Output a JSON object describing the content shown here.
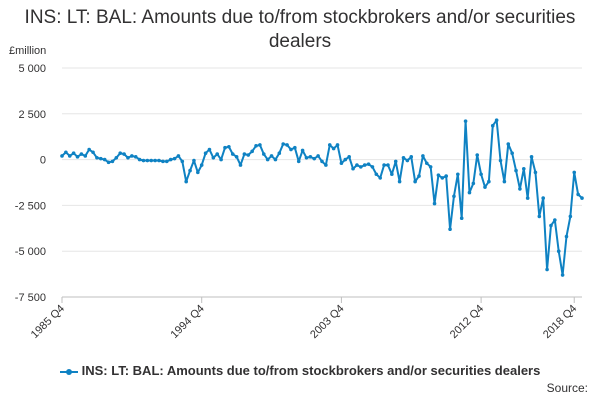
{
  "title": "INS: LT: BAL: Amounts due to/from stockbrokers and/or securities dealers",
  "unit_label": "£million",
  "source_label": "Source:",
  "colors": {
    "series": "#0f82c3",
    "grid": "#e6e6e6",
    "axis": "#bfbfbf",
    "text": "#323132"
  },
  "chart_data": {
    "type": "line",
    "title": "INS: LT: BAL: Amounts due to/from stockbrokers and/or securities dealers",
    "ylabel": "£million",
    "xlabel": "",
    "ylim": [
      -7500,
      5000
    ],
    "yticks": [
      {
        "value": 5000,
        "label": "5 000"
      },
      {
        "value": 2500,
        "label": "2 500"
      },
      {
        "value": 0,
        "label": "0"
      },
      {
        "value": -2500,
        "label": "-2 500"
      },
      {
        "value": -5000,
        "label": "-5 000"
      },
      {
        "value": -7500,
        "label": "-7 500"
      }
    ],
    "xticks": [
      {
        "index": 0,
        "label": "1985 Q4"
      },
      {
        "index": 36,
        "label": "1994 Q4"
      },
      {
        "index": 72,
        "label": "2003 Q4"
      },
      {
        "index": 108,
        "label": "2012 Q4"
      },
      {
        "index": 132,
        "label": "2018 Q4"
      }
    ],
    "grid": true,
    "legend_position": "bottom",
    "series": [
      {
        "name": "INS: LT: BAL: Amounts due to/from stockbrokers and/or securities dealers",
        "start": "1985 Q4",
        "frequency": "quarterly",
        "values": [
          200,
          400,
          200,
          350,
          150,
          300,
          200,
          550,
          400,
          100,
          50,
          0,
          -150,
          -100,
          100,
          350,
          300,
          100,
          200,
          150,
          0,
          -50,
          -50,
          -50,
          -50,
          -50,
          -100,
          -100,
          0,
          50,
          200,
          -100,
          -1200,
          -600,
          -50,
          -700,
          -300,
          350,
          550,
          100,
          300,
          0,
          650,
          700,
          300,
          150,
          -300,
          300,
          250,
          450,
          750,
          800,
          300,
          0,
          200,
          0,
          350,
          850,
          800,
          550,
          650,
          -100,
          500,
          100,
          150,
          50,
          200,
          -100,
          -300,
          800,
          600,
          800,
          -200,
          0,
          150,
          -500,
          -300,
          -400,
          -300,
          -250,
          -400,
          -800,
          -1000,
          -300,
          -300,
          -800,
          -100,
          -1200,
          100,
          -50,
          150,
          -1200,
          -900,
          200,
          -200,
          -400,
          -2400,
          -850,
          -1000,
          -900,
          -3800,
          -2000,
          -800,
          -3200,
          2100,
          -1800,
          -1300,
          250,
          -800,
          -1500,
          -1200,
          1850,
          2150,
          -50,
          -1200,
          850,
          350,
          -600,
          -1600,
          -500,
          -2100,
          150,
          -700,
          -3100,
          -2100,
          -6000,
          -3600,
          -3300,
          -5000,
          -6300,
          -4200,
          -3100,
          -700,
          -1900,
          -2100
        ]
      }
    ]
  }
}
